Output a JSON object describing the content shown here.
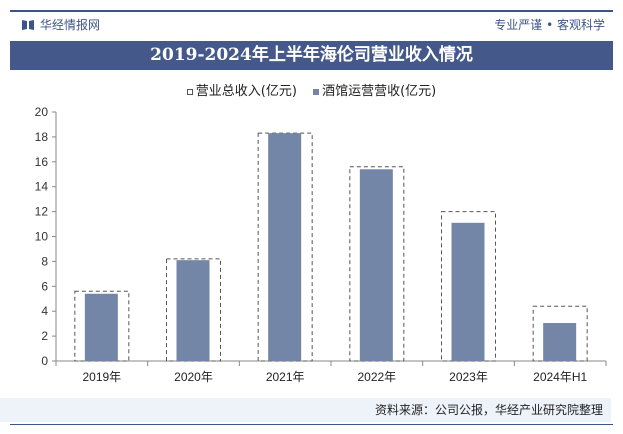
{
  "header": {
    "brand": "华经情报网",
    "slogan": "专业严谨 • 客观科学"
  },
  "colors": {
    "accent": "#44598a",
    "bar": "#7486a8",
    "dashed": "#555555"
  },
  "chart_data": {
    "type": "bar",
    "title": "2019-2024年上半年海伦司营业收入情况",
    "categories": [
      "2019年",
      "2020年",
      "2021年",
      "2022年",
      "2023年",
      "2024年H1"
    ],
    "series": [
      {
        "name": "营业总收入(亿元)",
        "values": [
          5.6,
          8.2,
          18.3,
          15.6,
          12.0,
          4.4
        ],
        "style": "dashed-outline"
      },
      {
        "name": "酒馆运营营收(亿元)",
        "values": [
          5.4,
          8.1,
          18.3,
          15.4,
          11.1,
          3.05
        ],
        "style": "filled"
      }
    ],
    "ylim": [
      0,
      20
    ],
    "yticks": [
      "0",
      "2",
      "4",
      "6",
      "8",
      "10",
      "12",
      "14",
      "16",
      "18",
      "20"
    ],
    "grid": false,
    "legend": "top"
  },
  "footer": {
    "source": "资料来源：公司公报，华经产业研究院整理"
  }
}
